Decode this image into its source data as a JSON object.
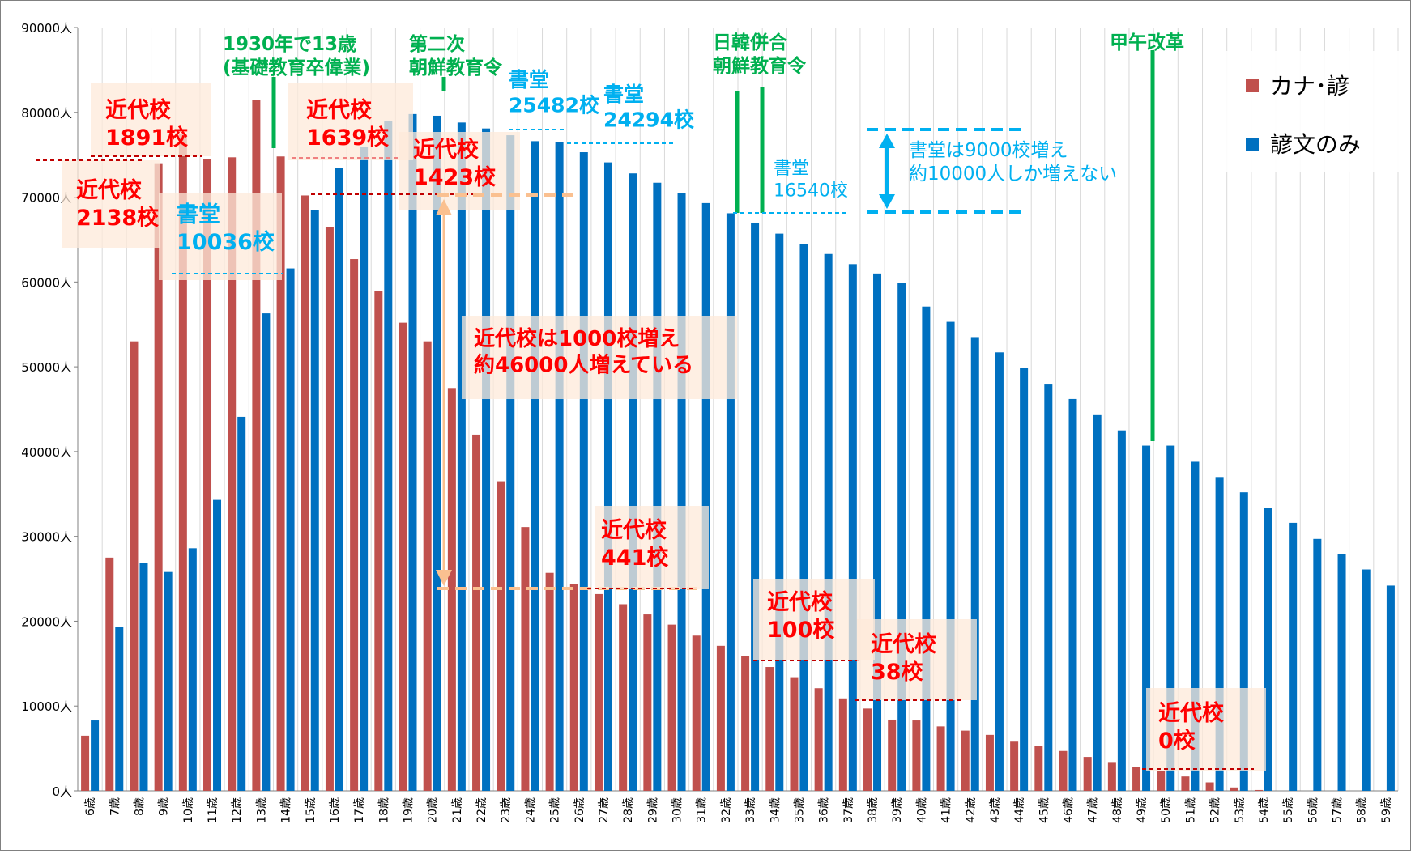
{
  "chart_data": {
    "type": "bar",
    "categories": [
      "6歳",
      "7歳",
      "8歳",
      "9歳",
      "10歳",
      "11歳",
      "12歳",
      "13歳",
      "14歳",
      "15歳",
      "16歳",
      "17歳",
      "18歳",
      "19歳",
      "20歳",
      "21歳",
      "22歳",
      "23歳",
      "24歳",
      "25歳",
      "26歳",
      "27歳",
      "28歳",
      "29歳",
      "30歳",
      "31歳",
      "32歳",
      "33歳",
      "34歳",
      "35歳",
      "36歳",
      "37歳",
      "38歳",
      "39歳",
      "40歳",
      "41歳",
      "42歳",
      "43歳",
      "44歳",
      "45歳",
      "46歳",
      "47歳",
      "48歳",
      "49歳",
      "50歳",
      "51歳",
      "52歳",
      "53歳",
      "54歳",
      "55歳",
      "56歳",
      "57歳",
      "58歳",
      "59歳"
    ],
    "series": [
      {
        "name": "カナ･諺",
        "color": "#c0504d",
        "values": [
          6500,
          27500,
          53000,
          74000,
          77500,
          74500,
          74700,
          81500,
          74800,
          70200,
          66500,
          62700,
          58900,
          55200,
          53000,
          47500,
          42000,
          36500,
          31100,
          25700,
          24400,
          23200,
          22000,
          20800,
          19600,
          18300,
          17100,
          15900,
          14600,
          13400,
          12100,
          10900,
          9700,
          8400,
          8300,
          7600,
          7100,
          6600,
          5800,
          5300,
          4700,
          4000,
          3400,
          2800,
          2300,
          1700,
          1000,
          400,
          100,
          0,
          0,
          0,
          0,
          0
        ]
      },
      {
        "name": "諺文のみ",
        "color": "#0070c0",
        "values": [
          8300,
          19300,
          26900,
          25800,
          28600,
          34300,
          44100,
          56300,
          61600,
          68500,
          73400,
          75900,
          79000,
          79800,
          79600,
          78800,
          78100,
          77300,
          76600,
          76500,
          75300,
          74100,
          72800,
          71700,
          70500,
          69300,
          68100,
          67000,
          65700,
          64500,
          63300,
          62100,
          61000,
          59900,
          57100,
          55300,
          53500,
          51700,
          49900,
          48000,
          46200,
          44300,
          42500,
          40700,
          40700,
          38800,
          37000,
          35200,
          33400,
          31600,
          29700,
          27900,
          26100,
          24200
        ]
      }
    ],
    "y_ticks": [
      "0人",
      "10000人",
      "20000人",
      "30000人",
      "40000人",
      "50000人",
      "60000人",
      "70000人",
      "80000人",
      "90000人"
    ],
    "ylim": [
      0,
      90000
    ],
    "grid": "vertical",
    "legend_position": "top-right",
    "annotations": {
      "kindai_1891": "近代校\n1891校",
      "kindai_2138": "近代校\n2138校",
      "shodo_10036": "書堂\n10036校",
      "event_1930": "1930年で13歳\n(基礎教育卒偉業)",
      "kindai_1639": "近代校\n1639校",
      "event_second": "第二次\n朝鮮教育令",
      "kindai_1423": "近代校\n1423校",
      "shodo_25482": "書堂\n25482校",
      "shodo_24294": "書堂\n24294校",
      "event_annex": "日韓併合\n朝鮮教育令",
      "shodo_16540": "書堂\n16540校",
      "shodo_note": "書堂は9000校増え\n約10000人しか増えない",
      "event_kogo": "甲午改革",
      "kindai_note": "近代校は1000校増え\n約46000人増えている",
      "kindai_441": "近代校\n441校",
      "kindai_100": "近代校\n100校",
      "kindai_38": "近代校\n38校",
      "kindai_0": "近代校\n0校"
    }
  },
  "colors": {
    "red_text": "#ff0000",
    "blue_text": "#00b0f0",
    "green_text": "#00b050",
    "dark_red_line": "#c00000",
    "orange_arrow": "#fac090",
    "label_bg": "#fde9d9"
  }
}
